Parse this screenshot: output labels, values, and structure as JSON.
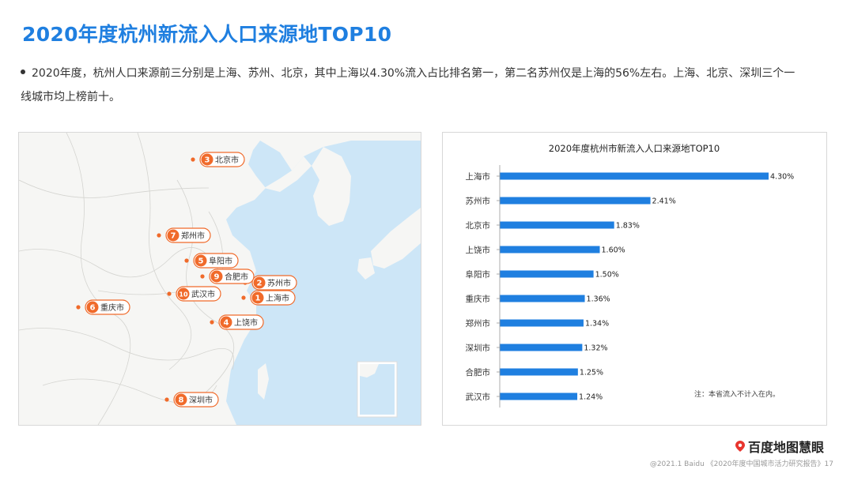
{
  "page": {
    "title": "2020年度杭州新流入人口来源地TOP10",
    "bullet_line1": "2020年度，杭州人口来源前三分别是上海、苏州、北京，其中上海以4.30%流入占比排名第一，第二名苏州仅是上海的56%左右。上海、北京、深圳三个一",
    "bullet_line2": "线城市均上榜前十。",
    "logo_text": "百度地图慧眼",
    "footer": "@2021.1 Baidu 《2020年度中国城市活力研究报告》17"
  },
  "map": {
    "markers": [
      {
        "rank": "1",
        "name": "上海市"
      },
      {
        "rank": "2",
        "name": "苏州市"
      },
      {
        "rank": "3",
        "name": "北京市"
      },
      {
        "rank": "4",
        "name": "上饶市"
      },
      {
        "rank": "5",
        "name": "阜阳市"
      },
      {
        "rank": "6",
        "name": "重庆市"
      },
      {
        "rank": "7",
        "name": "郑州市"
      },
      {
        "rank": "8",
        "name": "深圳市"
      },
      {
        "rank": "9",
        "name": "合肥市"
      },
      {
        "rank": "10",
        "name": "武汉市"
      }
    ],
    "colors": {
      "sea": "#cde6f7",
      "land": "#f6f6f4",
      "marker": "#f06a2a"
    }
  },
  "chart_data": {
    "type": "bar",
    "orientation": "horizontal",
    "title": "2020年度杭州市新流入人口来源地TOP10",
    "categories": [
      "上海市",
      "苏州市",
      "北京市",
      "上饶市",
      "阜阳市",
      "重庆市",
      "郑州市",
      "深圳市",
      "合肥市",
      "武汉市"
    ],
    "values": [
      4.3,
      2.41,
      1.83,
      1.6,
      1.5,
      1.36,
      1.34,
      1.32,
      1.25,
      1.24
    ],
    "value_labels": [
      "4.30%",
      "2.41%",
      "1.83%",
      "1.60%",
      "1.50%",
      "1.36%",
      "1.34%",
      "1.32%",
      "1.25%",
      "1.24%"
    ],
    "xlim": [
      0,
      4.3
    ],
    "unit": "%",
    "note": "注：本省流入不计入在内。",
    "bar_color": "#1f7fe0",
    "grid": false
  }
}
